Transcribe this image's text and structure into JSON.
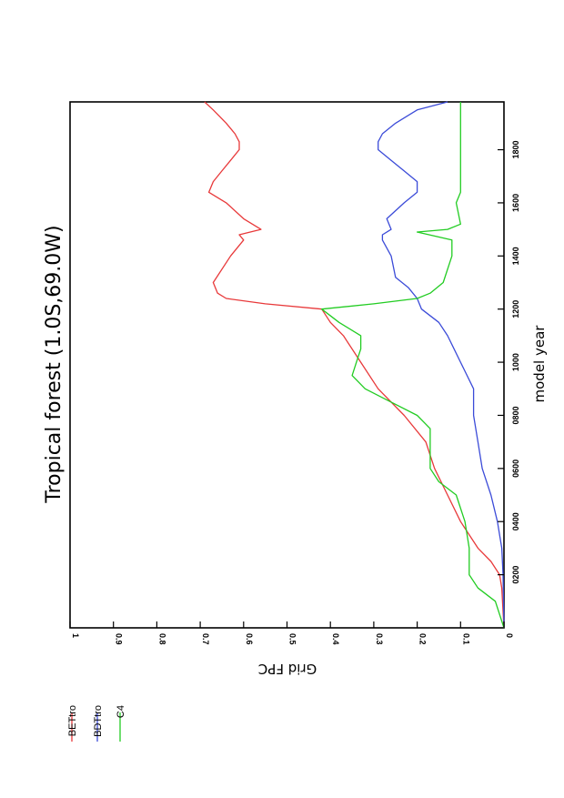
{
  "chart_data": {
    "type": "line",
    "title": "Tropical forest (1.0S,69.0W)",
    "xlabel": "model year",
    "ylabel": "Grid FPC",
    "xlim": [
      0,
      1980
    ],
    "ylim": [
      0,
      1
    ],
    "x_ticks": [
      "0200",
      "0400",
      "0600",
      "0800",
      "1000",
      "1200",
      "1400",
      "1600",
      "1800"
    ],
    "x_tick_values": [
      200,
      400,
      600,
      800,
      1000,
      1200,
      1400,
      1600,
      1800
    ],
    "y_ticks": [
      "0",
      "0.1",
      "0.2",
      "0.3",
      "0.4",
      "0.5",
      "0.6",
      "0.7",
      "0.8",
      "0.9",
      "1"
    ],
    "y_tick_values": [
      0,
      0.1,
      0.2,
      0.3,
      0.4,
      0.5,
      0.6,
      0.7,
      0.8,
      0.9,
      1
    ],
    "legend_position": "left",
    "series": [
      {
        "name": "BETtro",
        "color": "#e8393a",
        "x": [
          0,
          150,
          200,
          250,
          300,
          400,
          500,
          600,
          700,
          800,
          900,
          1000,
          1100,
          1150,
          1200,
          1220,
          1240,
          1260,
          1300,
          1400,
          1460,
          1480,
          1500,
          1540,
          1600,
          1640,
          1680,
          1720,
          1760,
          1800,
          1830,
          1860,
          1900,
          1950,
          1980
        ],
        "y": [
          0,
          0.005,
          0.01,
          0.03,
          0.06,
          0.1,
          0.13,
          0.16,
          0.18,
          0.23,
          0.29,
          0.33,
          0.37,
          0.4,
          0.42,
          0.55,
          0.64,
          0.66,
          0.67,
          0.63,
          0.6,
          0.61,
          0.56,
          0.6,
          0.64,
          0.68,
          0.67,
          0.65,
          0.63,
          0.61,
          0.61,
          0.62,
          0.64,
          0.67,
          0.69
        ]
      },
      {
        "name": "BDTtro",
        "color": "#3b4bd8",
        "x": [
          0,
          200,
          300,
          400,
          500,
          600,
          700,
          800,
          900,
          1000,
          1100,
          1150,
          1200,
          1240,
          1280,
          1320,
          1400,
          1460,
          1480,
          1500,
          1540,
          1600,
          1640,
          1680,
          1720,
          1760,
          1800,
          1830,
          1860,
          1900,
          1950,
          1980
        ],
        "y": [
          0,
          0.002,
          0.005,
          0.015,
          0.03,
          0.05,
          0.06,
          0.07,
          0.07,
          0.1,
          0.13,
          0.15,
          0.19,
          0.2,
          0.22,
          0.25,
          0.26,
          0.28,
          0.28,
          0.26,
          0.27,
          0.23,
          0.2,
          0.2,
          0.23,
          0.26,
          0.29,
          0.29,
          0.28,
          0.25,
          0.2,
          0.13
        ]
      },
      {
        "name": "C4",
        "color": "#22cc22",
        "x": [
          0,
          100,
          150,
          200,
          250,
          300,
          400,
          500,
          550,
          600,
          650,
          700,
          750,
          800,
          850,
          900,
          950,
          1000,
          1050,
          1100,
          1150,
          1200,
          1220,
          1240,
          1260,
          1300,
          1400,
          1460,
          1490,
          1500,
          1520,
          1600,
          1640,
          1700,
          1800,
          1900,
          1980
        ],
        "y": [
          0,
          0.02,
          0.06,
          0.08,
          0.08,
          0.08,
          0.09,
          0.11,
          0.15,
          0.17,
          0.17,
          0.17,
          0.17,
          0.2,
          0.26,
          0.32,
          0.35,
          0.34,
          0.33,
          0.33,
          0.38,
          0.42,
          0.3,
          0.2,
          0.17,
          0.14,
          0.12,
          0.12,
          0.2,
          0.13,
          0.1,
          0.11,
          0.1,
          0.1,
          0.1,
          0.1,
          0.1
        ]
      }
    ]
  }
}
